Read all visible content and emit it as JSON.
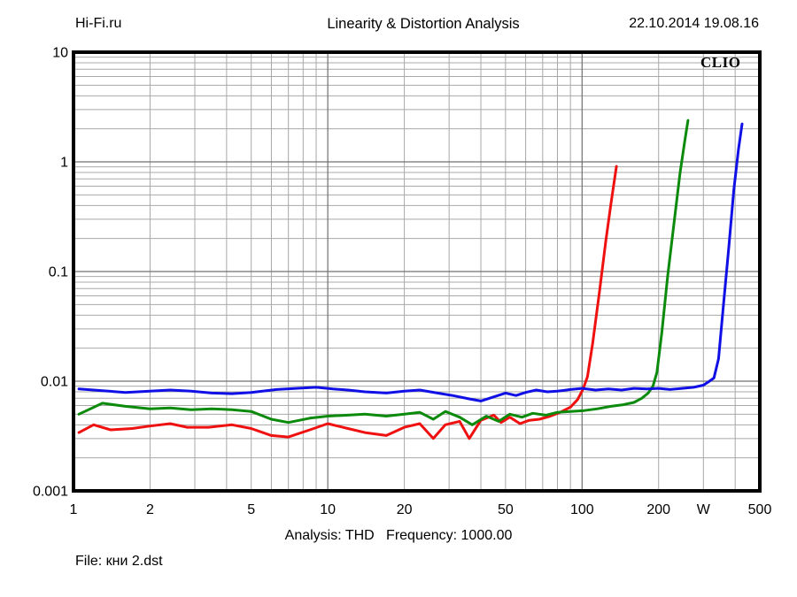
{
  "header": {
    "site": "Hi-Fi.ru",
    "title": "Linearity & Distortion Analysis",
    "datetime": "22.10.2014 19.08.16"
  },
  "plot": {
    "brand": "CLIO"
  },
  "footer": {
    "analysis_line": "Analysis: THD   Frequency: 1000.00",
    "file_line": "File: кни 2.dst"
  },
  "chart_data": {
    "type": "line",
    "title": "Linearity & Distortion Analysis",
    "x_scale": "log",
    "y_scale": "log",
    "xlim": [
      1,
      500
    ],
    "ylim": [
      0.001,
      10
    ],
    "xlabel": "W",
    "ylabel": "",
    "grid": "log minor gridlines on both axes",
    "legend_position": "none",
    "x_tick_labels": [
      {
        "v": 1,
        "label": "1"
      },
      {
        "v": 2,
        "label": "2"
      },
      {
        "v": 5,
        "label": "5"
      },
      {
        "v": 10,
        "label": "10"
      },
      {
        "v": 20,
        "label": "20"
      },
      {
        "v": 50,
        "label": "50"
      },
      {
        "v": 100,
        "label": "100"
      },
      {
        "v": 200,
        "label": "200"
      },
      {
        "v": 500,
        "label": "500"
      }
    ],
    "x_unit_label": {
      "v": 300,
      "label": "W"
    },
    "y_tick_labels": [
      {
        "v": 10,
        "label": "10"
      },
      {
        "v": 1,
        "label": "1"
      },
      {
        "v": 0.1,
        "label": "0.1"
      },
      {
        "v": 0.01,
        "label": "0.01"
      },
      {
        "v": 0.001,
        "label": "0.001"
      }
    ],
    "frame_color": "#000000",
    "grid_minor_color": "#a8a8a8",
    "grid_major_color": "#707070",
    "series": [
      {
        "name": "red-channel",
        "color": "#ef1010",
        "points": [
          [
            1.05,
            0.0034
          ],
          [
            1.2,
            0.004
          ],
          [
            1.4,
            0.0036
          ],
          [
            1.7,
            0.0037
          ],
          [
            2.0,
            0.0039
          ],
          [
            2.4,
            0.0041
          ],
          [
            2.8,
            0.0038
          ],
          [
            3.4,
            0.0038
          ],
          [
            4.2,
            0.004
          ],
          [
            5.0,
            0.0037
          ],
          [
            6.0,
            0.0032
          ],
          [
            7.0,
            0.0031
          ],
          [
            8.5,
            0.0036
          ],
          [
            10,
            0.0041
          ],
          [
            12,
            0.0037
          ],
          [
            14,
            0.0034
          ],
          [
            17,
            0.0032
          ],
          [
            20,
            0.0038
          ],
          [
            23,
            0.0041
          ],
          [
            26,
            0.003
          ],
          [
            29,
            0.004
          ],
          [
            33,
            0.0043
          ],
          [
            36,
            0.003
          ],
          [
            40,
            0.0044
          ],
          [
            45,
            0.0049
          ],
          [
            48,
            0.0042
          ],
          [
            52,
            0.0047
          ],
          [
            57,
            0.0041
          ],
          [
            62,
            0.0044
          ],
          [
            68,
            0.0045
          ],
          [
            75,
            0.0048
          ],
          [
            82,
            0.0052
          ],
          [
            90,
            0.0058
          ],
          [
            96,
            0.0068
          ],
          [
            101,
            0.0085
          ],
          [
            105,
            0.011
          ],
          [
            110,
            0.022
          ],
          [
            117,
            0.065
          ],
          [
            124,
            0.19
          ],
          [
            130,
            0.42
          ],
          [
            134,
            0.68
          ],
          [
            136.5,
            0.91
          ]
        ]
      },
      {
        "name": "green-channel",
        "color": "#0c8a0c",
        "points": [
          [
            1.05,
            0.005
          ],
          [
            1.3,
            0.0063
          ],
          [
            1.6,
            0.0059
          ],
          [
            2.0,
            0.0056
          ],
          [
            2.4,
            0.0057
          ],
          [
            2.9,
            0.0055
          ],
          [
            3.5,
            0.0056
          ],
          [
            4.2,
            0.0055
          ],
          [
            5.0,
            0.0053
          ],
          [
            6.0,
            0.0045
          ],
          [
            7.0,
            0.0042
          ],
          [
            8.5,
            0.0046
          ],
          [
            10,
            0.0048
          ],
          [
            12,
            0.0049
          ],
          [
            14,
            0.005
          ],
          [
            17,
            0.0048
          ],
          [
            20,
            0.005
          ],
          [
            23,
            0.0052
          ],
          [
            26,
            0.0045
          ],
          [
            29,
            0.0053
          ],
          [
            33,
            0.0047
          ],
          [
            37,
            0.004
          ],
          [
            42,
            0.0048
          ],
          [
            47,
            0.0043
          ],
          [
            52,
            0.005
          ],
          [
            58,
            0.0047
          ],
          [
            64,
            0.0051
          ],
          [
            72,
            0.0049
          ],
          [
            80,
            0.0052
          ],
          [
            90,
            0.0053
          ],
          [
            102,
            0.0054
          ],
          [
            115,
            0.0056
          ],
          [
            130,
            0.0059
          ],
          [
            145,
            0.0061
          ],
          [
            160,
            0.0064
          ],
          [
            172,
            0.007
          ],
          [
            182,
            0.0078
          ],
          [
            190,
            0.009
          ],
          [
            197,
            0.012
          ],
          [
            206,
            0.028
          ],
          [
            217,
            0.09
          ],
          [
            230,
            0.28
          ],
          [
            243,
            0.8
          ],
          [
            253,
            1.5
          ],
          [
            261,
            2.39
          ]
        ]
      },
      {
        "name": "blue-channel",
        "color": "#1010e6",
        "points": [
          [
            1.05,
            0.0085
          ],
          [
            1.3,
            0.0082
          ],
          [
            1.6,
            0.0079
          ],
          [
            2.0,
            0.0081
          ],
          [
            2.4,
            0.0083
          ],
          [
            2.9,
            0.0081
          ],
          [
            3.5,
            0.0078
          ],
          [
            4.2,
            0.0077
          ],
          [
            5.0,
            0.0079
          ],
          [
            6.3,
            0.0084
          ],
          [
            7.5,
            0.0086
          ],
          [
            9.0,
            0.0088
          ],
          [
            10.5,
            0.0085
          ],
          [
            12,
            0.0083
          ],
          [
            14,
            0.008
          ],
          [
            17,
            0.0078
          ],
          [
            20,
            0.0081
          ],
          [
            23,
            0.0083
          ],
          [
            27,
            0.0078
          ],
          [
            31,
            0.0074
          ],
          [
            36,
            0.0069
          ],
          [
            40,
            0.0066
          ],
          [
            45,
            0.0072
          ],
          [
            50,
            0.0078
          ],
          [
            55,
            0.0074
          ],
          [
            60,
            0.0079
          ],
          [
            66,
            0.0083
          ],
          [
            73,
            0.008
          ],
          [
            80,
            0.0081
          ],
          [
            90,
            0.0084
          ],
          [
            100,
            0.0086
          ],
          [
            113,
            0.0083
          ],
          [
            127,
            0.0085
          ],
          [
            143,
            0.0083
          ],
          [
            160,
            0.0086
          ],
          [
            180,
            0.0085
          ],
          [
            200,
            0.0086
          ],
          [
            222,
            0.0084
          ],
          [
            247,
            0.0086
          ],
          [
            275,
            0.0088
          ],
          [
            300,
            0.0092
          ],
          [
            315,
            0.0099
          ],
          [
            330,
            0.0107
          ],
          [
            344,
            0.016
          ],
          [
            360,
            0.05
          ],
          [
            378,
            0.17
          ],
          [
            395,
            0.55
          ],
          [
            412,
            1.3
          ],
          [
            426,
            2.22
          ]
        ]
      }
    ]
  }
}
